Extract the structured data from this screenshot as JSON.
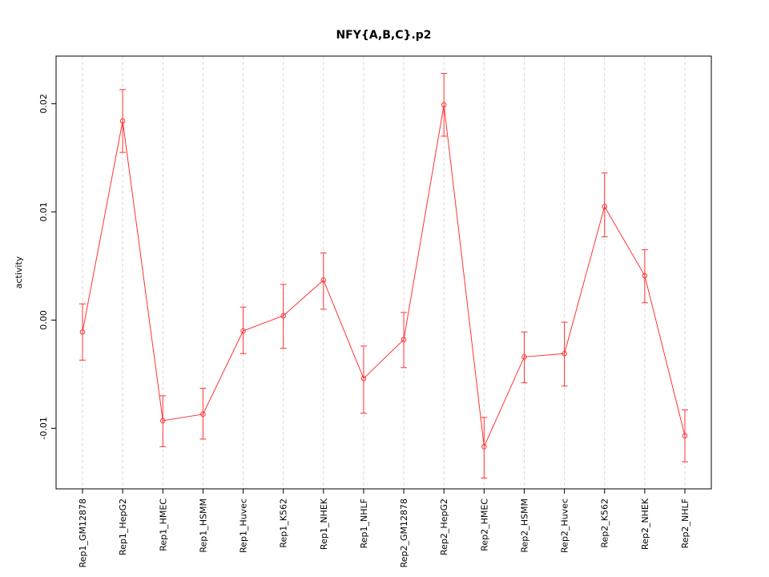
{
  "title": "NFY{A,B,C}.p2",
  "chart_data": {
    "type": "line",
    "title": "NFY{A,B,C}.p2",
    "xlabel": "",
    "ylabel": "activity",
    "categories": [
      "Rep1_GM12878",
      "Rep1_HepG2",
      "Rep1_HMEC",
      "Rep1_HSMM",
      "Rep1_Huvec",
      "Rep1_K562",
      "Rep1_NHEK",
      "Rep1_NHLF",
      "Rep2_GM12878",
      "Rep2_HepG2",
      "Rep2_HMEC",
      "Rep2_HSMM",
      "Rep2_Huvec",
      "Rep2_K562",
      "Rep2_NHEK",
      "Rep2_NHLF"
    ],
    "series": [
      {
        "name": "activity",
        "values": [
          -0.0011,
          0.0184,
          -0.0093,
          -0.0087,
          -0.001,
          0.0004,
          0.0037,
          -0.0054,
          -0.0018,
          0.0199,
          -0.0117,
          -0.0034,
          -0.0031,
          0.0105,
          0.0041,
          -0.0107
        ],
        "ci_low": [
          -0.0037,
          0.0155,
          -0.0117,
          -0.011,
          -0.0031,
          -0.0026,
          0.001,
          -0.0086,
          -0.0044,
          0.017,
          -0.0146,
          -0.0058,
          -0.0061,
          0.0077,
          0.0016,
          -0.0131
        ],
        "ci_high": [
          0.0015,
          0.0213,
          -0.007,
          -0.0063,
          0.0012,
          0.0033,
          0.0062,
          -0.0024,
          0.0007,
          0.0228,
          -0.009,
          -0.0011,
          -0.0002,
          0.0136,
          0.0065,
          -0.0083
        ]
      }
    ],
    "ylim": [
      -0.0156,
      0.0244
    ],
    "yticks": [
      -0.01,
      0,
      0.01,
      0.02
    ],
    "ytick_labels": [
      "-0.01",
      "0.00",
      "0.01",
      "0.02"
    ],
    "grid": "vertical-dashed",
    "grid_color": "#d9d9d9",
    "line_color": "#ff3333",
    "point_style": "open-circle",
    "legend": "none"
  }
}
